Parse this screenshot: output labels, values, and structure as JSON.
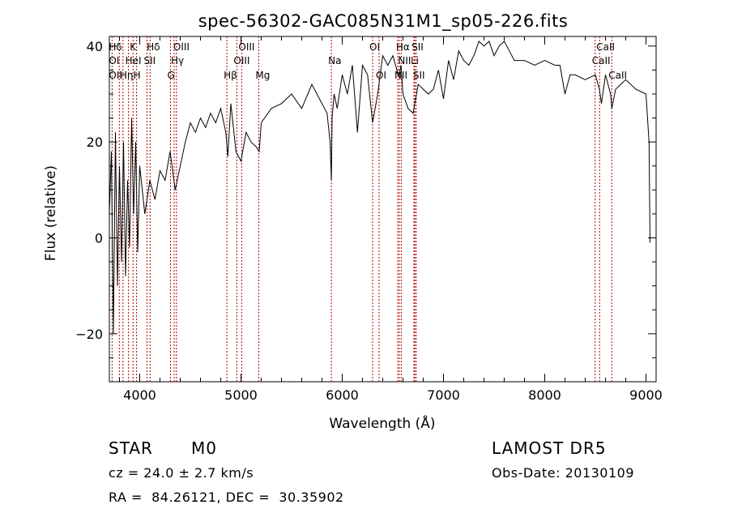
{
  "chart_data": {
    "type": "line",
    "title": "spec-56302-GAC085N31M1_sp05-226.fits",
    "xlabel": "Wavelength (Å)",
    "ylabel": "Flux (relative)",
    "xlim": [
      3700,
      9100
    ],
    "ylim": [
      -30,
      42
    ],
    "xticks": [
      4000,
      5000,
      6000,
      7000,
      8000,
      9000
    ],
    "yticks": [
      -20,
      0,
      20,
      40
    ],
    "series": [
      {
        "x": [
          3700,
          3720,
          3740,
          3760,
          3780,
          3800,
          3820,
          3840,
          3860,
          3880,
          3900,
          3920,
          3940,
          3960,
          3980,
          4000,
          4050,
          4100,
          4150,
          4200,
          4250,
          4300,
          4350,
          4400,
          4450,
          4500,
          4550,
          4600,
          4650,
          4700,
          4750,
          4800,
          4850,
          4870,
          4900,
          4950,
          5000,
          5050,
          5100,
          5150,
          5180,
          5200,
          5300,
          5400,
          5500,
          5600,
          5700,
          5800,
          5850,
          5880,
          5893,
          5900,
          5920,
          5950,
          6000,
          6050,
          6100,
          6150,
          6200,
          6250,
          6300,
          6350,
          6400,
          6450,
          6500,
          6540,
          6563,
          6580,
          6600,
          6650,
          6700,
          6750,
          6800,
          6850,
          6900,
          6950,
          7000,
          7050,
          7100,
          7150,
          7200,
          7250,
          7300,
          7350,
          7400,
          7450,
          7500,
          7550,
          7600,
          7650,
          7700,
          7800,
          7900,
          8000,
          8100,
          8150,
          8200,
          8250,
          8300,
          8400,
          8500,
          8540,
          8560,
          8600,
          8650,
          8662,
          8700,
          8800,
          8900,
          9000,
          9030,
          9040
        ],
        "y": [
          5,
          18,
          -20,
          22,
          -10,
          15,
          -5,
          20,
          -8,
          12,
          -2,
          25,
          5,
          20,
          -3,
          15,
          5,
          12,
          8,
          14,
          12,
          18,
          10,
          15,
          20,
          24,
          22,
          25,
          23,
          26,
          24,
          27,
          22,
          17,
          28,
          18,
          16,
          22,
          20,
          19,
          18,
          24,
          27,
          28,
          30,
          27,
          32,
          28,
          26,
          20,
          12,
          25,
          30,
          27,
          34,
          30,
          36,
          22,
          36,
          34,
          24,
          30,
          38,
          36,
          38,
          35,
          34,
          36,
          30,
          27,
          26,
          32,
          31,
          30,
          31,
          35,
          29,
          37,
          33,
          39,
          37,
          36,
          38,
          41,
          40,
          41,
          38,
          40,
          41,
          39,
          37,
          37,
          36,
          37,
          36,
          36,
          30,
          34,
          34,
          33,
          34,
          31,
          28,
          34,
          30,
          27,
          31,
          33,
          31,
          30,
          20,
          -1
        ]
      }
    ],
    "line_markers": [
      {
        "label": "Hδ",
        "x": 3727,
        "row": 1
      },
      {
        "label": "K",
        "x": 3934,
        "row": 1
      },
      {
        "label": "Hδ",
        "x": 4102,
        "row": 1
      },
      {
        "label": "OIII",
        "x": 4363,
        "row": 1
      },
      {
        "label": "OIII",
        "x": 5007,
        "row": 1
      },
      {
        "label": "OI",
        "x": 6300,
        "row": 1
      },
      {
        "label": "Hα",
        "x": 6563,
        "row": 1
      },
      {
        "label": "SII",
        "x": 6717,
        "row": 1
      },
      {
        "label": "CaII",
        "x": 8542,
        "row": 1
      },
      {
        "label": "OI",
        "x": 3727,
        "row": 2
      },
      {
        "label": "HeI",
        "x": 3889,
        "row": 2
      },
      {
        "label": "SII",
        "x": 4072,
        "row": 2
      },
      {
        "label": "Hγ",
        "x": 4340,
        "row": 2
      },
      {
        "label": "OIII",
        "x": 4959,
        "row": 2
      },
      {
        "label": "Na",
        "x": 5893,
        "row": 2
      },
      {
        "label": "NII",
        "x": 6583,
        "row": 2
      },
      {
        "label": "Li",
        "x": 6708,
        "row": 2
      },
      {
        "label": "CaII",
        "x": 8498,
        "row": 2
      },
      {
        "label": "OII",
        "x": 3727,
        "row": 3
      },
      {
        "label": "Hη",
        "x": 3835,
        "row": 3
      },
      {
        "label": "H",
        "x": 3969,
        "row": 3
      },
      {
        "label": "G",
        "x": 4304,
        "row": 3
      },
      {
        "label": "Hβ",
        "x": 4861,
        "row": 3
      },
      {
        "label": "Mg",
        "x": 5175,
        "row": 3
      },
      {
        "label": "OI",
        "x": 6364,
        "row": 3
      },
      {
        "label": "NII",
        "x": 6548,
        "row": 3
      },
      {
        "label": "SII",
        "x": 6731,
        "row": 3
      },
      {
        "label": "CaII",
        "x": 8662,
        "row": 3
      }
    ],
    "line_positions": [
      3727,
      3798,
      3835,
      3889,
      3934,
      3969,
      4072,
      4102,
      4304,
      4340,
      4363,
      4861,
      4959,
      5007,
      5175,
      5893,
      6300,
      6364,
      6548,
      6563,
      6583,
      6708,
      6717,
      6731,
      8498,
      8542,
      8662
    ],
    "line_color": "#b00000",
    "grid": false
  },
  "info": {
    "object_class": "STAR",
    "subclass": "M0",
    "survey": "LAMOST DR5",
    "velocity": "cz = 24.0 ± 2.7 km/s",
    "obs_date": "Obs-Date: 20130109",
    "coordinates": "RA =  84.26121, DEC =  30.35902"
  }
}
